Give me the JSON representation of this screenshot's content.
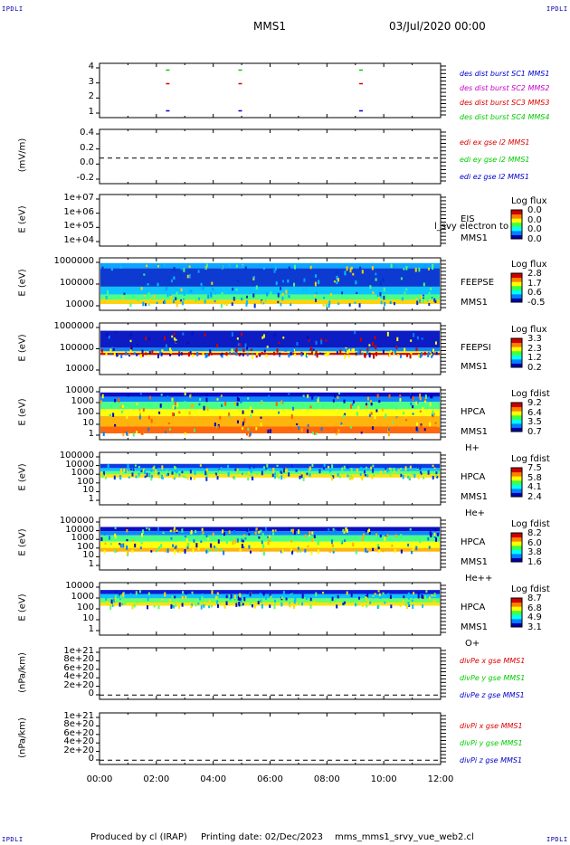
{
  "header": {
    "spacecraft": "MMS1",
    "date": "03/Jul/2020 00:00",
    "corner_label": "IPDLI"
  },
  "footer": {
    "produced_by": "Produced by cl (IRAP)",
    "printing_date": "Printing date: 02/Dec/2023",
    "script_name": "mms_mms1_srvy_vue_web2.cl"
  },
  "colors": {
    "blue": "#0000cc",
    "red": "#dd0000",
    "green": "#00cc00",
    "magenta": "#cc00cc"
  },
  "chart_data": [
    {
      "type": "scatter",
      "id": "dist-burst",
      "ylim": [
        0.5,
        4.5
      ],
      "yticks": [
        "4",
        "3",
        "2",
        "1"
      ],
      "legend": [
        {
          "label": "des dist burst SC1 MMS1",
          "color": "#0000cc"
        },
        {
          "label": "des dist burst SC2 MMS2",
          "color": "#cc00cc"
        },
        {
          "label": "des dist burst SC3 MMS3",
          "color": "#dd0000"
        },
        {
          "label": "des dist burst SC4 MMS4",
          "color": "#00cc00"
        }
      ],
      "marks": [
        {
          "x": 2.4,
          "y": 4,
          "color": "#00cc00"
        },
        {
          "x": 4.95,
          "y": 4,
          "color": "#00cc00"
        },
        {
          "x": 9.2,
          "y": 4,
          "color": "#00cc00"
        },
        {
          "x": 2.4,
          "y": 3,
          "color": "#dd0000"
        },
        {
          "x": 4.95,
          "y": 3,
          "color": "#dd0000"
        },
        {
          "x": 9.2,
          "y": 3,
          "color": "#dd0000"
        },
        {
          "x": 2.4,
          "y": 1,
          "color": "#0000cc"
        },
        {
          "x": 4.95,
          "y": 1,
          "color": "#0000cc"
        },
        {
          "x": 9.2,
          "y": 1,
          "color": "#0000cc"
        }
      ]
    },
    {
      "type": "line",
      "id": "edi-e",
      "ylabel": "(mV/m)",
      "ylim": [
        -0.4,
        0.45
      ],
      "yticks": [
        "0.4",
        "0.2",
        "0.0",
        "-0.2"
      ],
      "legend": [
        {
          "label": "edi ex gse l2 MMS1",
          "color": "#dd0000"
        },
        {
          "label": "edi ey gse l2 MMS1",
          "color": "#00cc00"
        },
        {
          "label": "edi ez gse l2 MMS1",
          "color": "#0000cc"
        }
      ],
      "series": []
    },
    {
      "type": "heatmap",
      "id": "eis",
      "ylabel": "E (eV)",
      "yticks": [
        "1e+07",
        "1e+06",
        "1e+05",
        "1e+04"
      ],
      "instrument": "EIS",
      "spacecraft": "MMS1",
      "overlay_text": "l_svy electron to",
      "colorbar_title": "Log flux",
      "colorbar_values": [
        "0.0",
        "0.0",
        "0.0",
        "0.0"
      ],
      "bands": []
    },
    {
      "type": "heatmap",
      "id": "feeps-e",
      "ylabel": "E (eV)",
      "yticks": [
        "1000000",
        "100000",
        "10000"
      ],
      "instrument": "FEEPSE",
      "spacecraft": "MMS1",
      "colorbar_title": "Log flux",
      "colorbar_values": [
        "2.8",
        "1.7",
        "0.6",
        "-0.5"
      ],
      "bands": [
        {
          "top": 0.1,
          "bottom": 0.2,
          "color": "#00a0ff"
        },
        {
          "top": 0.2,
          "bottom": 0.55,
          "color": "#0030d0"
        },
        {
          "top": 0.55,
          "bottom": 0.7,
          "color": "#00c0ff"
        },
        {
          "top": 0.7,
          "bottom": 0.8,
          "color": "#40ff80"
        },
        {
          "top": 0.8,
          "bottom": 0.88,
          "color": "#ffd000"
        }
      ]
    },
    {
      "type": "heatmap",
      "id": "feeps-i",
      "ylabel": "E (eV)",
      "yticks": [
        "1000000",
        "100000",
        "10000"
      ],
      "instrument": "FEEPSI",
      "spacecraft": "MMS1",
      "colorbar_title": "Log flux",
      "colorbar_values": [
        "3.3",
        "2.3",
        "1.2",
        "0.2"
      ],
      "bands": [
        {
          "top": 0.15,
          "bottom": 0.48,
          "color": "#0010c0"
        },
        {
          "top": 0.48,
          "bottom": 0.55,
          "color": "#0080ff"
        },
        {
          "top": 0.55,
          "bottom": 0.58,
          "color": "#ffff00"
        },
        {
          "top": 0.58,
          "bottom": 0.62,
          "color": "#cc0000"
        }
      ]
    },
    {
      "type": "heatmap",
      "id": "hpca-h",
      "ylabel": "E (eV)",
      "yticks": [
        "10000",
        "1000",
        "100",
        "10",
        "1"
      ],
      "instrument": "HPCA",
      "spacecraft": "MMS1",
      "species": "H+",
      "colorbar_title": "Log fdist",
      "colorbar_values": [
        "9.2",
        "6.4",
        "3.5",
        "0.7"
      ],
      "bands": [
        {
          "top": 0.1,
          "bottom": 0.18,
          "color": "#0000c0"
        },
        {
          "top": 0.18,
          "bottom": 0.28,
          "color": "#0080ff"
        },
        {
          "top": 0.28,
          "bottom": 0.42,
          "color": "#40ff80"
        },
        {
          "top": 0.42,
          "bottom": 0.55,
          "color": "#ffff00"
        },
        {
          "top": 0.55,
          "bottom": 0.75,
          "color": "#ffb000"
        },
        {
          "top": 0.75,
          "bottom": 0.88,
          "color": "#ff6000"
        }
      ]
    },
    {
      "type": "heatmap",
      "id": "hpca-he",
      "ylabel": "E (eV)",
      "yticks": [
        "100000",
        "10000",
        "1000",
        "100",
        "10",
        "1"
      ],
      "instrument": "HPCA",
      "spacecraft": "MMS1",
      "species": "He+",
      "colorbar_title": "Log fdist",
      "colorbar_values": [
        "7.5",
        "5.8",
        "4.1",
        "2.4"
      ],
      "bands": [
        {
          "top": 0.22,
          "bottom": 0.3,
          "color": "#0030e0"
        },
        {
          "top": 0.3,
          "bottom": 0.36,
          "color": "#00c0ff"
        },
        {
          "top": 0.36,
          "bottom": 0.42,
          "color": "#60ff60"
        },
        {
          "top": 0.42,
          "bottom": 0.48,
          "color": "#ffe000"
        }
      ]
    },
    {
      "type": "heatmap",
      "id": "hpca-he2",
      "ylabel": "E (eV)",
      "yticks": [
        "100000",
        "10000",
        "1000",
        "100",
        "10",
        "1"
      ],
      "instrument": "HPCA",
      "spacecraft": "MMS1",
      "species": "He++",
      "colorbar_title": "Log fdist",
      "colorbar_values": [
        "8.2",
        "6.0",
        "3.8",
        "1.6"
      ],
      "bands": [
        {
          "top": 0.18,
          "bottom": 0.26,
          "color": "#0000c0"
        },
        {
          "top": 0.26,
          "bottom": 0.34,
          "color": "#0080ff"
        },
        {
          "top": 0.34,
          "bottom": 0.46,
          "color": "#40ff80"
        },
        {
          "top": 0.46,
          "bottom": 0.58,
          "color": "#ffff00"
        },
        {
          "top": 0.58,
          "bottom": 0.65,
          "color": "#ffb000"
        }
      ]
    },
    {
      "type": "heatmap",
      "id": "hpca-o",
      "ylabel": "E (eV)",
      "yticks": [
        "10000",
        "1000",
        "100",
        "10",
        "1"
      ],
      "instrument": "HPCA",
      "spacecraft": "MMS1",
      "species": "O+",
      "colorbar_title": "Log fdist",
      "colorbar_values": [
        "8.7",
        "6.8",
        "4.9",
        "3.1"
      ],
      "bands": [
        {
          "top": 0.14,
          "bottom": 0.22,
          "color": "#0010d0"
        },
        {
          "top": 0.22,
          "bottom": 0.3,
          "color": "#00c0ff"
        },
        {
          "top": 0.3,
          "bottom": 0.38,
          "color": "#60ff60"
        },
        {
          "top": 0.38,
          "bottom": 0.44,
          "color": "#ffe000"
        }
      ]
    },
    {
      "type": "line",
      "id": "divpe",
      "ylabel": "(nPa/km)",
      "ylim": [
        -1e+20,
        1.1e+21
      ],
      "yticks": [
        "1e+21",
        "8e+20",
        "6e+20",
        "4e+20",
        "2e+20",
        "0"
      ],
      "legend": [
        {
          "label": "divPe x gse MMS1",
          "color": "#dd0000"
        },
        {
          "label": "divPe y gse MMS1",
          "color": "#00cc00"
        },
        {
          "label": "divPe z gse MMS1",
          "color": "#0000cc"
        }
      ],
      "series": []
    },
    {
      "type": "line",
      "id": "divpi",
      "ylabel": "(nPa/km)",
      "ylim": [
        -1e+20,
        1.1e+21
      ],
      "yticks": [
        "1e+21",
        "8e+20",
        "6e+20",
        "4e+20",
        "2e+20",
        "0"
      ],
      "legend": [
        {
          "label": "divPi x gse MMS1",
          "color": "#dd0000"
        },
        {
          "label": "divPi y gse MMS1",
          "color": "#00cc00"
        },
        {
          "label": "divPi z gse MMS1",
          "color": "#0000cc"
        }
      ],
      "series": []
    }
  ],
  "xaxis": {
    "xlim": [
      0,
      12
    ],
    "ticks": [
      "00:00",
      "02:00",
      "04:00",
      "06:00",
      "08:00",
      "10:00",
      "12:00"
    ]
  }
}
